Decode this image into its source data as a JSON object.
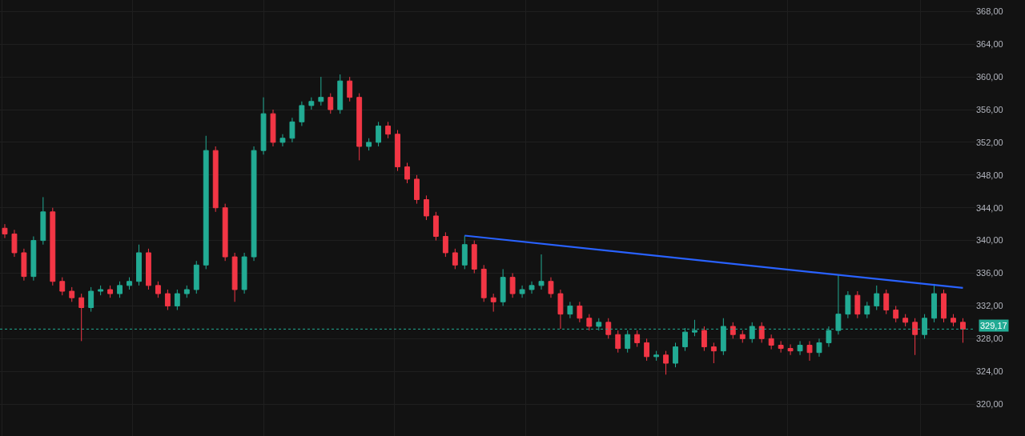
{
  "chart_data": {
    "type": "candlestick",
    "categories": [
      null,
      null,
      null,
      null,
      null,
      null,
      null,
      null,
      null,
      null,
      null,
      null,
      null,
      null,
      null,
      null,
      null,
      null,
      null,
      null,
      null,
      null,
      null,
      null,
      null,
      null,
      null,
      null,
      null,
      null,
      null,
      null,
      null,
      null,
      null,
      null,
      null,
      null,
      null,
      null,
      null,
      null,
      null,
      null,
      null,
      null,
      null,
      null,
      null,
      null,
      null,
      null,
      null,
      null,
      null,
      null,
      null,
      null,
      null,
      null,
      null,
      null,
      null,
      null,
      null,
      null,
      null,
      null,
      null,
      null,
      null,
      null,
      null,
      null,
      null,
      null,
      null,
      null,
      null,
      null,
      null,
      null,
      null,
      null,
      null,
      null,
      null,
      null,
      null,
      null,
      null,
      null,
      null,
      null,
      null,
      null,
      null,
      null,
      null,
      null,
      null
    ],
    "series": [
      {
        "colors": [
          "#f23645",
          "#f23645",
          "#f23645",
          "#22ab94",
          "#22ab94",
          "#f23645",
          "#f23645",
          "#f23645",
          "#f23645",
          "#22ab94",
          "#22ab94",
          "#f23645",
          "#22ab94",
          "#22ab94",
          "#22ab94",
          "#f23645",
          "#f23645",
          "#f23645",
          "#22ab94",
          "#22ab94",
          "#22ab94",
          "#22ab94",
          "#f23645",
          "#f23645",
          "#f23645",
          "#22ab94",
          "#22ab94",
          "#22ab94",
          "#f23645",
          "#22ab94",
          "#22ab94",
          "#22ab94",
          "#22ab94",
          "#22ab94",
          "#f23645",
          "#22ab94",
          "#f23645",
          "#f23645",
          "#22ab94",
          "#22ab94",
          "#f23645",
          "#f23645",
          "#f23645",
          "#f23645",
          "#f23645",
          "#f23645",
          "#f23645",
          "#f23645",
          "#22ab94",
          "#f23645",
          "#f23645",
          "#f23645",
          "#22ab94",
          "#f23645",
          "#22ab94",
          "#22ab94",
          "#22ab94",
          "#f23645",
          "#f23645",
          "#22ab94",
          "#f23645",
          "#f23645",
          "#22ab94",
          "#f23645",
          "#f23645",
          "#22ab94",
          "#f23645",
          "#f23645",
          "#22ab94",
          "#f23645",
          "#22ab94",
          "#22ab94",
          "#22ab94",
          "#f23645",
          "#f23645",
          "#22ab94",
          "#f23645",
          "#f23645",
          "#22ab94",
          "#f23645",
          "#f23645",
          "#f23645",
          "#f23645",
          "#22ab94",
          "#f23645",
          "#22ab94",
          "#22ab94",
          "#22ab94",
          "#22ab94",
          "#f23645",
          "#22ab94",
          "#22ab94",
          "#f23645",
          "#f23645",
          "#f23645",
          "#f23645",
          "#22ab94",
          "#22ab94",
          "#f23645",
          "#f23645",
          "#f23645"
        ],
        "ohlc": [
          [
            341.5,
            342,
            340.3,
            340.8
          ],
          [
            340.8,
            341.3,
            338,
            338.5
          ],
          [
            338.5,
            339,
            335.1,
            335.6
          ],
          [
            335.6,
            340.5,
            335.1,
            340
          ],
          [
            340,
            345.3,
            339.5,
            343.5
          ],
          [
            343.5,
            344,
            334.5,
            335
          ],
          [
            335,
            335.5,
            333.3,
            333.8
          ],
          [
            333.8,
            334.3,
            332.5,
            333
          ],
          [
            333,
            333.5,
            327.7,
            331.8
          ],
          [
            331.8,
            334.3,
            331.3,
            333.8
          ],
          [
            333.8,
            334.5,
            333.3,
            334
          ],
          [
            334,
            334.5,
            333,
            333.5
          ],
          [
            333.5,
            335,
            333,
            334.5
          ],
          [
            334.5,
            335.5,
            334,
            335
          ],
          [
            335,
            339.5,
            334.5,
            338.5
          ],
          [
            338.5,
            339,
            334,
            334.5
          ],
          [
            334.5,
            335,
            333,
            333.5
          ],
          [
            333.5,
            334,
            331.5,
            332
          ],
          [
            332,
            334,
            331.5,
            333.5
          ],
          [
            333.5,
            334.5,
            333,
            334
          ],
          [
            334,
            337.5,
            333.5,
            337
          ],
          [
            337,
            352.8,
            336.5,
            351
          ],
          [
            351,
            351.5,
            343.5,
            344
          ],
          [
            344,
            344.5,
            337.5,
            338
          ],
          [
            338,
            338.5,
            332.5,
            334
          ],
          [
            334,
            338.5,
            333.5,
            338
          ],
          [
            338,
            351.5,
            337.5,
            351
          ],
          [
            351,
            357.5,
            350.5,
            355.5
          ],
          [
            355.5,
            356,
            351.5,
            352
          ],
          [
            352,
            353,
            351.5,
            352.5
          ],
          [
            352.5,
            355,
            352,
            354.5
          ],
          [
            354.5,
            357,
            354,
            356.5
          ],
          [
            356.5,
            357.5,
            356,
            357
          ],
          [
            357,
            360,
            356.5,
            357.5
          ],
          [
            357.5,
            358,
            355.5,
            356
          ],
          [
            356,
            360.3,
            355.5,
            359.5
          ],
          [
            359.5,
            360,
            357,
            357.5
          ],
          [
            357.5,
            358,
            349.8,
            351.5
          ],
          [
            351.5,
            352.5,
            351,
            352
          ],
          [
            352,
            354.5,
            351.5,
            354
          ],
          [
            354,
            354.5,
            352.5,
            353
          ],
          [
            353,
            353.5,
            348.5,
            349
          ],
          [
            349,
            349.5,
            347,
            347.5
          ],
          [
            347.5,
            348,
            344.5,
            345
          ],
          [
            345,
            345.5,
            342.5,
            343
          ],
          [
            343,
            343.5,
            340,
            340.5
          ],
          [
            340.5,
            341,
            338,
            338.5
          ],
          [
            338.5,
            339,
            336.5,
            337
          ],
          [
            337,
            340.6,
            336.5,
            339.5
          ],
          [
            339.5,
            340,
            336,
            336.5
          ],
          [
            336.5,
            337,
            332.5,
            333
          ],
          [
            333,
            333.5,
            331.3,
            332.5
          ],
          [
            332.5,
            336.5,
            332,
            335.5
          ],
          [
            335.5,
            336,
            333,
            333.5
          ],
          [
            333.5,
            334.5,
            333,
            334
          ],
          [
            334,
            335,
            333.5,
            334.5
          ],
          [
            334.5,
            338.3,
            334,
            335
          ],
          [
            335,
            335.5,
            333,
            333.5
          ],
          [
            333.5,
            334,
            329.2,
            331
          ],
          [
            331,
            332.5,
            330.5,
            332
          ],
          [
            332,
            332.5,
            330,
            330.5
          ],
          [
            330.5,
            331,
            329,
            329.5
          ],
          [
            329.5,
            330.5,
            329,
            330
          ],
          [
            330,
            330.5,
            328,
            328.5
          ],
          [
            328.5,
            329,
            326.3,
            326.8
          ],
          [
            326.8,
            329,
            326.3,
            328.5
          ],
          [
            328.5,
            329,
            327,
            327.5
          ],
          [
            327.5,
            328,
            325.3,
            325.8
          ],
          [
            325.8,
            326.5,
            325.3,
            326
          ],
          [
            326,
            326.5,
            323.6,
            325
          ],
          [
            325,
            327.5,
            324.5,
            327
          ],
          [
            327,
            329.3,
            326.5,
            328.8
          ],
          [
            328.8,
            330.3,
            328.3,
            329
          ],
          [
            329,
            329.5,
            326.5,
            327
          ],
          [
            327,
            327.5,
            325,
            326.5
          ],
          [
            326.5,
            330.5,
            326,
            329.5
          ],
          [
            329.5,
            330,
            328,
            328.5
          ],
          [
            328.5,
            329,
            327.5,
            328
          ],
          [
            328,
            330,
            327.5,
            329.5
          ],
          [
            329.5,
            330,
            327.5,
            328
          ],
          [
            328,
            328.5,
            326.7,
            327.2
          ],
          [
            327.2,
            327.7,
            326.3,
            326.8
          ],
          [
            326.8,
            327.3,
            326,
            326.5
          ],
          [
            326.5,
            327.7,
            326,
            327.2
          ],
          [
            327.2,
            327.7,
            325.3,
            326.3
          ],
          [
            326.3,
            328,
            325.8,
            327.5
          ],
          [
            327.5,
            329.5,
            327,
            329
          ],
          [
            329,
            335.8,
            328.5,
            331
          ],
          [
            331,
            333.8,
            330.5,
            333.3
          ],
          [
            333.3,
            333.8,
            330.5,
            331
          ],
          [
            331,
            332.5,
            330.5,
            332
          ],
          [
            332,
            334.5,
            331.5,
            333.5
          ],
          [
            333.5,
            334,
            331,
            331.5
          ],
          [
            331.5,
            332,
            330,
            330.5
          ],
          [
            330.5,
            331,
            329.5,
            330
          ],
          [
            330,
            330.5,
            326,
            328.5
          ],
          [
            328.5,
            331,
            328,
            330.5
          ],
          [
            330.5,
            334.7,
            330,
            333.5
          ],
          [
            333.5,
            334,
            330,
            330.5
          ],
          [
            330.5,
            331,
            329.5,
            330
          ],
          [
            330,
            330.5,
            327.5,
            329.17
          ]
        ]
      },
      {
        "type": "line",
        "values": [
          null,
          null,
          null,
          null,
          null,
          null,
          null,
          null,
          null,
          null,
          null,
          null,
          null,
          null,
          null,
          null,
          null,
          null,
          null,
          null,
          null,
          null,
          null,
          null,
          null,
          null,
          null,
          null,
          null,
          null,
          null,
          null,
          null,
          null,
          null,
          null,
          null,
          null,
          null,
          null,
          null,
          null,
          null,
          null,
          null,
          null,
          null,
          null,
          340.6,
          null,
          null,
          null,
          null,
          null,
          null,
          null,
          null,
          null,
          null,
          null,
          null,
          null,
          null,
          null,
          null,
          null,
          null,
          null,
          null,
          null,
          null,
          null,
          null,
          null,
          null,
          null,
          null,
          null,
          null,
          null,
          null,
          null,
          null,
          null,
          null,
          null,
          null,
          null,
          null,
          null,
          null,
          null,
          null,
          null,
          null,
          null,
          null,
          null,
          null,
          null,
          334.2
        ],
        "color": "#2962ff"
      }
    ],
    "ylim": [
      316.1,
      369.4
    ],
    "yticks": [
      {
        "value": 320,
        "label": "320,00"
      },
      {
        "value": 324,
        "label": "324,00"
      },
      {
        "value": 328,
        "label": "328,00"
      },
      {
        "value": 332,
        "label": "332,00"
      },
      {
        "value": 336,
        "label": "336,00"
      },
      {
        "value": 340,
        "label": "340,00"
      },
      {
        "value": 344,
        "label": "344,00"
      },
      {
        "value": 348,
        "label": "348,00"
      },
      {
        "value": 352,
        "label": "352,00"
      },
      {
        "value": 356,
        "label": "356,00"
      },
      {
        "value": 360,
        "label": "360,00"
      },
      {
        "value": 364,
        "label": "364,00"
      },
      {
        "value": 368,
        "label": "368,00"
      }
    ],
    "ref_lines": [
      {
        "axis": "y",
        "value": 329.17,
        "label": "329,17",
        "color": "#22ab94",
        "line_style": "dotted"
      }
    ],
    "grid": true,
    "tick_labels": "y"
  }
}
